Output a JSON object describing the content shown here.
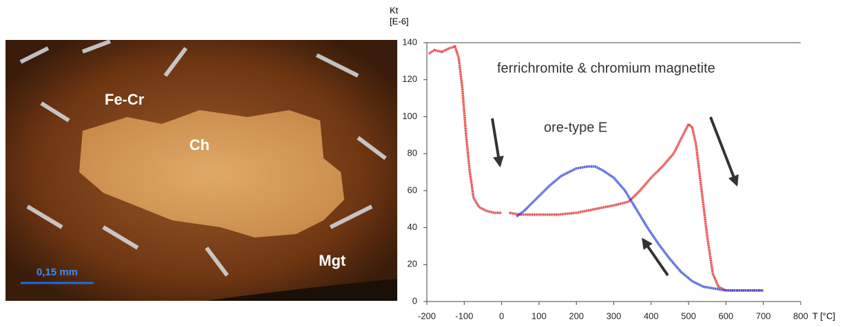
{
  "image": {
    "labels": [
      "Fe-Cr",
      "Ch",
      "Mgt"
    ],
    "scale_bar": "0,15 mm"
  },
  "chart_data": {
    "type": "line",
    "y_label": "Kt",
    "y_unit": "[E-6]",
    "x_label": "T [°C]",
    "annotations": [
      "ferrichromite & chromium magnetite",
      "ore-type E"
    ],
    "xlim": [
      -200,
      800
    ],
    "xticks": [
      -200,
      -100,
      0,
      100,
      200,
      300,
      400,
      500,
      600,
      700,
      800
    ],
    "ylim": [
      0,
      140
    ],
    "yticks": [
      0,
      20,
      40,
      60,
      80,
      100,
      120,
      140
    ],
    "grid": false,
    "series": [
      {
        "color": "#e01a1a",
        "x": [
          -195,
          -180,
          -160,
          -140,
          -125,
          -115,
          -105,
          -95,
          -85,
          -75,
          -60,
          -40,
          -20,
          0,
          10,
          20,
          50,
          100,
          150,
          200,
          250,
          300,
          340,
          370,
          400,
          430,
          460,
          480,
          500,
          510,
          520,
          535,
          550,
          565,
          580,
          600,
          650,
          700
        ],
        "values": [
          134,
          136,
          135,
          137,
          138,
          132,
          115,
          90,
          70,
          56,
          51,
          49,
          48,
          48,
          null,
          48,
          47,
          47,
          47,
          48,
          50,
          52,
          54,
          60,
          67,
          73,
          80,
          88,
          96,
          94,
          85,
          60,
          35,
          15,
          8,
          6,
          6,
          6
        ]
      },
      {
        "color": "#1a2ed0",
        "x": [
          40,
          60,
          80,
          100,
          130,
          160,
          200,
          230,
          250,
          270,
          300,
          330,
          360,
          390,
          420,
          450,
          480,
          510,
          540,
          570,
          600,
          650,
          700
        ],
        "values": [
          46,
          49,
          53,
          57,
          63,
          68,
          72,
          73,
          73,
          71,
          67,
          60,
          50,
          40,
          31,
          23,
          16,
          11,
          8,
          7,
          6,
          6,
          6
        ]
      }
    ]
  }
}
